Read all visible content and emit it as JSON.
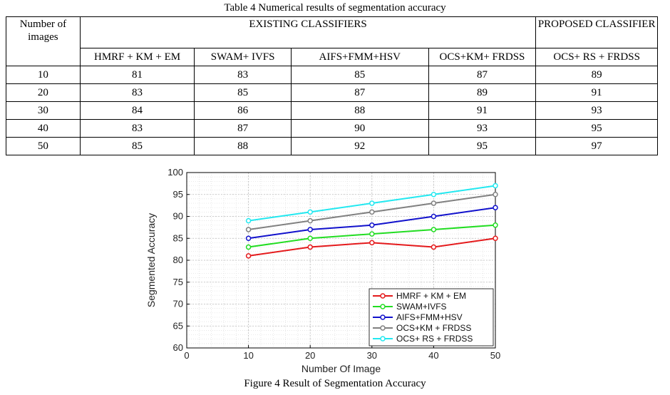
{
  "table": {
    "caption": "Table 4 Numerical results of segmentation accuracy",
    "header_left": "Number of images",
    "group_existing": "EXISTING CLASSIFIERS",
    "group_proposed": "PROPOSED CLASSIFIER",
    "columns": [
      "HMRF + KM + EM",
      "SWAM+ IVFS",
      "AIFS+FMM+HSV",
      "OCS+KM+ FRDSS",
      "OCS+ RS + FRDSS"
    ],
    "rows": [
      [
        "10",
        "81",
        "83",
        "85",
        "87",
        "89"
      ],
      [
        "20",
        "83",
        "85",
        "87",
        "89",
        "91"
      ],
      [
        "30",
        "84",
        "86",
        "88",
        "91",
        "93"
      ],
      [
        "40",
        "83",
        "87",
        "90",
        "93",
        "95"
      ],
      [
        "50",
        "85",
        "88",
        "92",
        "95",
        "97"
      ]
    ]
  },
  "chart_data": {
    "type": "line",
    "xlabel": "Number Of Image",
    "ylabel": "Segmented Accuracy",
    "xlim": [
      0,
      50
    ],
    "ylim": [
      60,
      100
    ],
    "xticks": [
      0,
      10,
      20,
      30,
      40,
      50
    ],
    "yticks": [
      60,
      65,
      70,
      75,
      80,
      85,
      90,
      95,
      100
    ],
    "grid": true,
    "legend_position": "bottom-right",
    "x": [
      10,
      20,
      30,
      40,
      50
    ],
    "series": [
      {
        "name": "HMRF + KM + EM",
        "color": "#e41a1c",
        "values": [
          81,
          83,
          84,
          83,
          85
        ]
      },
      {
        "name": "SWAM+IVFS",
        "color": "#22dd22",
        "values": [
          83,
          85,
          86,
          87,
          88
        ]
      },
      {
        "name": "AIFS+FMM+HSV",
        "color": "#1111cc",
        "values": [
          85,
          87,
          88,
          90,
          92
        ]
      },
      {
        "name": "OCS+KM + FRDSS",
        "color": "#808080",
        "values": [
          87,
          89,
          91,
          93,
          95
        ]
      },
      {
        "name": "OCS+ RS + FRDSS",
        "color": "#22e8f0",
        "values": [
          89,
          91,
          93,
          95,
          97
        ]
      }
    ]
  },
  "figure": {
    "caption": "Figure 4 Result of Segmentation Accuracy"
  }
}
